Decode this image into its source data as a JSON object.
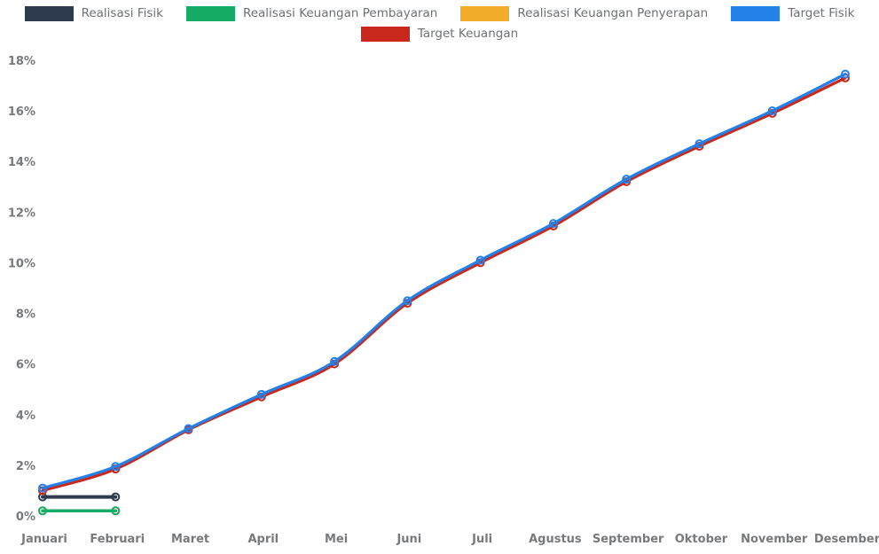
{
  "page": {
    "background": "#ffffff",
    "axis_text_color": "#77797c",
    "legend_text_color": "#6e7175"
  },
  "chart_data": {
    "type": "line",
    "title": "",
    "xlabel": "",
    "ylabel": "",
    "categories": [
      "Januari",
      "Februari",
      "Maret",
      "April",
      "Mei",
      "Juni",
      "Juli",
      "Agustus",
      "September",
      "Oktober",
      "November",
      "Desember"
    ],
    "ylim": [
      0,
      18
    ],
    "ytick_step": 2,
    "ytick_labels": [
      "0%",
      "2%",
      "4%",
      "6%",
      "8%",
      "10%",
      "12%",
      "14%",
      "16%",
      "18%"
    ],
    "grid": false,
    "legend_position": "top",
    "legend_rows": [
      [
        0,
        1,
        2,
        3
      ],
      [
        4
      ]
    ],
    "series": [
      {
        "name": "Realisasi Fisik",
        "color": "#2e3a4e",
        "marker": "ring",
        "line_width": 4,
        "values": [
          0.75,
          0.75
        ]
      },
      {
        "name": "Realisasi Keuangan Pembayaran",
        "color": "#17ab68",
        "marker": "ring",
        "line_width": 3.5,
        "values": [
          0.2,
          0.2
        ]
      },
      {
        "name": "Realisasi Keuangan Penyerapan",
        "color": "#f2ac29",
        "marker": "ring",
        "line_width": 3.5,
        "values": [
          0.2,
          0.2
        ],
        "note": "coincides with green series, not separately visible on plot"
      },
      {
        "name": "Target Fisik",
        "color": "#2381e8",
        "marker": "ring",
        "line_width": 3.2,
        "values": [
          1.1,
          1.95,
          3.45,
          4.8,
          6.1,
          8.5,
          10.1,
          11.55,
          13.3,
          14.7,
          16.0,
          17.45
        ]
      },
      {
        "name": "Target Keuangan",
        "color": "#c9281c",
        "marker": "ring",
        "line_width": 3.2,
        "values": [
          1.0,
          1.85,
          3.4,
          4.7,
          6.0,
          8.4,
          10.0,
          11.45,
          13.2,
          14.6,
          15.9,
          17.3
        ]
      }
    ],
    "draw_order": [
      2,
      1,
      0,
      4,
      3
    ]
  }
}
